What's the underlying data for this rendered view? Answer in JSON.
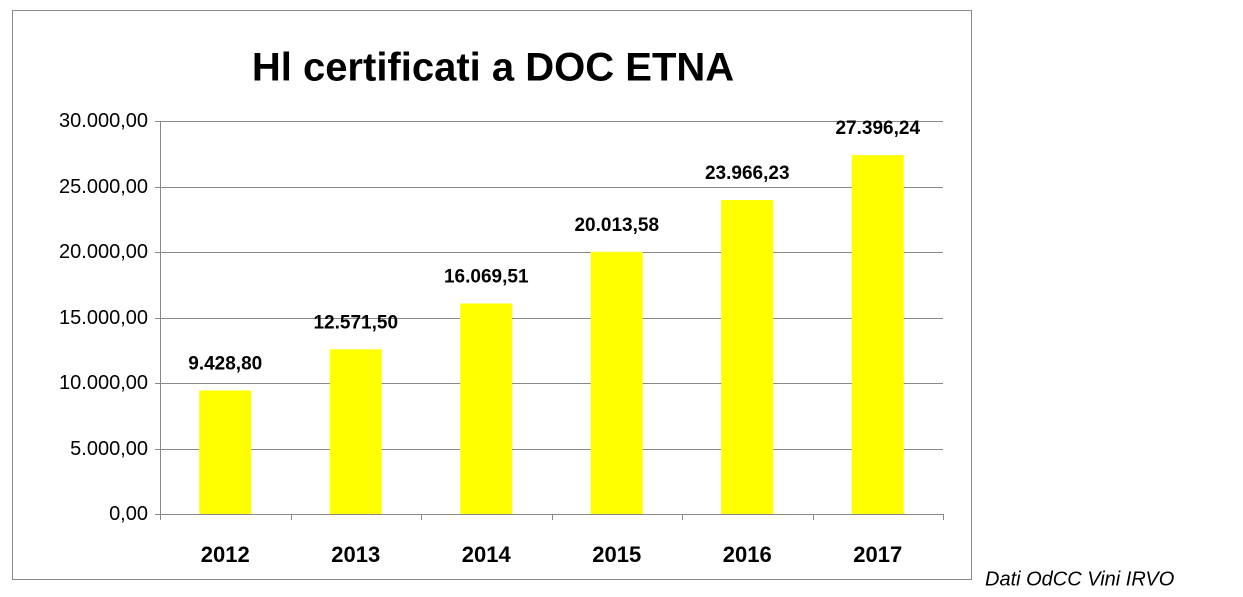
{
  "chart_data": {
    "type": "bar",
    "title": "Hl certificati a DOC ETNA",
    "categories": [
      "2012",
      "2013",
      "2014",
      "2015",
      "2016",
      "2017"
    ],
    "values": [
      9428.8,
      12571.5,
      16069.51,
      20013.58,
      23966.23,
      27396.24
    ],
    "value_labels": [
      "9.428,80",
      "12.571,50",
      "16.069,51",
      "20.013,58",
      "23.966,23",
      "27.396,24"
    ],
    "color": "#ffff00",
    "ylim": [
      0,
      30000
    ],
    "yticks": [
      {
        "value": 0,
        "label": "0,00"
      },
      {
        "value": 5000,
        "label": "5.000,00"
      },
      {
        "value": 10000,
        "label": "10.000,00"
      },
      {
        "value": 15000,
        "label": "15.000,00"
      },
      {
        "value": 20000,
        "label": "20.000,00"
      },
      {
        "value": 25000,
        "label": "25.000,00"
      },
      {
        "value": 30000,
        "label": "30.000,00"
      }
    ],
    "grid": true,
    "note": "Dati OdCC Vini IRVO"
  }
}
